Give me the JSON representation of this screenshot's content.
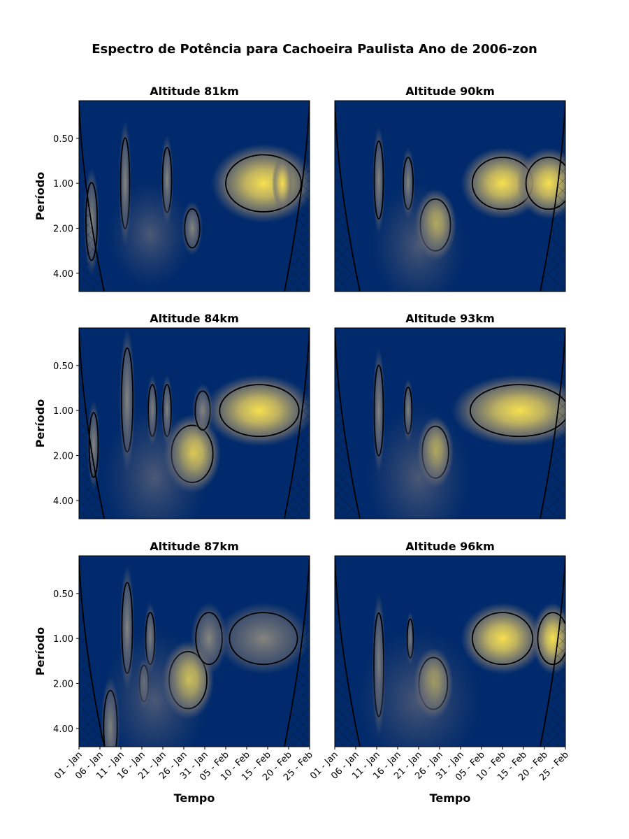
{
  "title": "Espectro de Potência para Cachoeira Paulista Ano de 2006-zon",
  "colors": {
    "background": "#002a6b",
    "mid": "#6f6f72",
    "high": "#c8b860",
    "peak": "#f6e04f",
    "contour": "#000000"
  },
  "chart_data": {
    "type": "heatmap",
    "ylabel": "Período",
    "xlabel": "Tempo",
    "yticks": [
      "0.50",
      "1.00",
      "2.00",
      "4.00"
    ],
    "yscale": "log2",
    "ylim": [
      5.3,
      0.28
    ],
    "xticks": [
      "01 - Jan",
      "06 - Jan",
      "11 - Jan",
      "16 - Jan",
      "21 - Jan",
      "26 - Jan",
      "31 - Jan",
      "05 - Feb",
      "10 - Feb",
      "15 - Feb",
      "20 - Feb",
      "25 - Feb"
    ],
    "xlim_days": [
      0,
      55
    ],
    "panels": [
      {
        "title": "Altitude 81km",
        "blobs": [
          {
            "d": 3,
            "p": 1.8,
            "w": 1.5,
            "h": 0.3,
            "level": 0.5,
            "contour": true
          },
          {
            "d": 11,
            "p": 1.0,
            "w": 1.2,
            "h": 0.35,
            "level": 0.45,
            "contour": true
          },
          {
            "d": 21,
            "p": 0.95,
            "w": 1.2,
            "h": 0.25,
            "level": 0.45,
            "contour": true
          },
          {
            "d": 27,
            "p": 2.0,
            "w": 2.0,
            "h": 0.15,
            "level": 0.55,
            "contour": true
          },
          {
            "d": 44,
            "p": 1.0,
            "w": 10.0,
            "h": 0.22,
            "level": 0.8,
            "contour": true
          },
          {
            "d": 48.5,
            "p": 1.0,
            "w": 2.0,
            "h": 0.15,
            "level": 1.0,
            "contour": false
          },
          {
            "d": 17,
            "p": 2.2,
            "w": 8.0,
            "h": 0.3,
            "level": 0.25,
            "contour": false
          }
        ]
      },
      {
        "title": "Altitude 90km",
        "blobs": [
          {
            "d": 10.5,
            "p": 0.95,
            "w": 1.2,
            "h": 0.3,
            "level": 0.45,
            "contour": true
          },
          {
            "d": 17.5,
            "p": 1.0,
            "w": 1.3,
            "h": 0.2,
            "level": 0.45,
            "contour": true
          },
          {
            "d": 24,
            "p": 1.9,
            "w": 4.0,
            "h": 0.2,
            "level": 0.8,
            "contour": true
          },
          {
            "d": 40,
            "p": 1.0,
            "w": 8.0,
            "h": 0.2,
            "level": 0.8,
            "contour": true
          },
          {
            "d": 51,
            "p": 1.0,
            "w": 6.0,
            "h": 0.2,
            "level": 0.85,
            "contour": true
          },
          {
            "d": 20,
            "p": 2.6,
            "w": 9.0,
            "h": 0.35,
            "level": 0.25,
            "contour": false
          }
        ]
      },
      {
        "title": "Altitude 84km",
        "blobs": [
          {
            "d": 3.5,
            "p": 1.7,
            "w": 1.2,
            "h": 0.25,
            "level": 0.5,
            "contour": true
          },
          {
            "d": 11.5,
            "p": 0.85,
            "w": 1.5,
            "h": 0.4,
            "level": 0.45,
            "contour": true
          },
          {
            "d": 17.5,
            "p": 1.0,
            "w": 1.1,
            "h": 0.2,
            "level": 0.45,
            "contour": true
          },
          {
            "d": 21,
            "p": 1.0,
            "w": 1.1,
            "h": 0.2,
            "level": 0.45,
            "contour": true
          },
          {
            "d": 27,
            "p": 1.95,
            "w": 5.5,
            "h": 0.22,
            "level": 0.8,
            "contour": true
          },
          {
            "d": 29.5,
            "p": 1.0,
            "w": 2.0,
            "h": 0.15,
            "level": 0.45,
            "contour": true
          },
          {
            "d": 43,
            "p": 1.0,
            "w": 10.5,
            "h": 0.2,
            "level": 0.85,
            "contour": true
          },
          {
            "d": 18,
            "p": 2.8,
            "w": 10.0,
            "h": 0.4,
            "level": 0.25,
            "contour": false
          }
        ]
      },
      {
        "title": "Altitude 93km",
        "blobs": [
          {
            "d": 10.5,
            "p": 1.0,
            "w": 1.2,
            "h": 0.35,
            "level": 0.5,
            "contour": true
          },
          {
            "d": 17.5,
            "p": 1.0,
            "w": 1.0,
            "h": 0.18,
            "level": 0.45,
            "contour": true
          },
          {
            "d": 24,
            "p": 1.9,
            "w": 3.5,
            "h": 0.2,
            "level": 0.75,
            "contour": true
          },
          {
            "d": 44,
            "p": 1.0,
            "w": 13.0,
            "h": 0.2,
            "level": 0.85,
            "contour": true
          },
          {
            "d": 20,
            "p": 2.8,
            "w": 10.0,
            "h": 0.4,
            "level": 0.25,
            "contour": false
          }
        ]
      },
      {
        "title": "Altitude 87km",
        "blobs": [
          {
            "d": 7.5,
            "p": 3.9,
            "w": 1.8,
            "h": 0.28,
            "level": 0.45,
            "contour": true
          },
          {
            "d": 11.5,
            "p": 0.85,
            "w": 1.4,
            "h": 0.35,
            "level": 0.45,
            "contour": true
          },
          {
            "d": 17,
            "p": 1.0,
            "w": 1.2,
            "h": 0.2,
            "level": 0.45,
            "contour": true
          },
          {
            "d": 15.5,
            "p": 2.0,
            "w": 1.2,
            "h": 0.14,
            "level": 0.45,
            "contour": true
          },
          {
            "d": 26,
            "p": 1.9,
            "w": 5.0,
            "h": 0.22,
            "level": 0.85,
            "contour": true
          },
          {
            "d": 31,
            "p": 1.0,
            "w": 3.5,
            "h": 0.2,
            "level": 0.6,
            "contour": true
          },
          {
            "d": 44,
            "p": 1.0,
            "w": 9.0,
            "h": 0.2,
            "level": 0.7,
            "contour": true
          },
          {
            "d": 18,
            "p": 2.6,
            "w": 10.0,
            "h": 0.4,
            "level": 0.25,
            "contour": false
          }
        ]
      },
      {
        "title": "Altitude 96km",
        "blobs": [
          {
            "d": 10.5,
            "p": 1.5,
            "w": 1.3,
            "h": 0.4,
            "level": 0.7,
            "contour": true
          },
          {
            "d": 18,
            "p": 1.0,
            "w": 0.8,
            "h": 0.15,
            "level": 0.45,
            "contour": true
          },
          {
            "d": 23.5,
            "p": 2.0,
            "w": 3.8,
            "h": 0.2,
            "level": 0.8,
            "contour": true
          },
          {
            "d": 40,
            "p": 1.0,
            "w": 8.0,
            "h": 0.2,
            "level": 0.85,
            "contour": true
          },
          {
            "d": 52,
            "p": 1.0,
            "w": 4.0,
            "h": 0.2,
            "level": 0.9,
            "contour": true
          },
          {
            "d": 20,
            "p": 2.6,
            "w": 12.0,
            "h": 0.4,
            "level": 0.25,
            "contour": false
          }
        ]
      }
    ]
  }
}
